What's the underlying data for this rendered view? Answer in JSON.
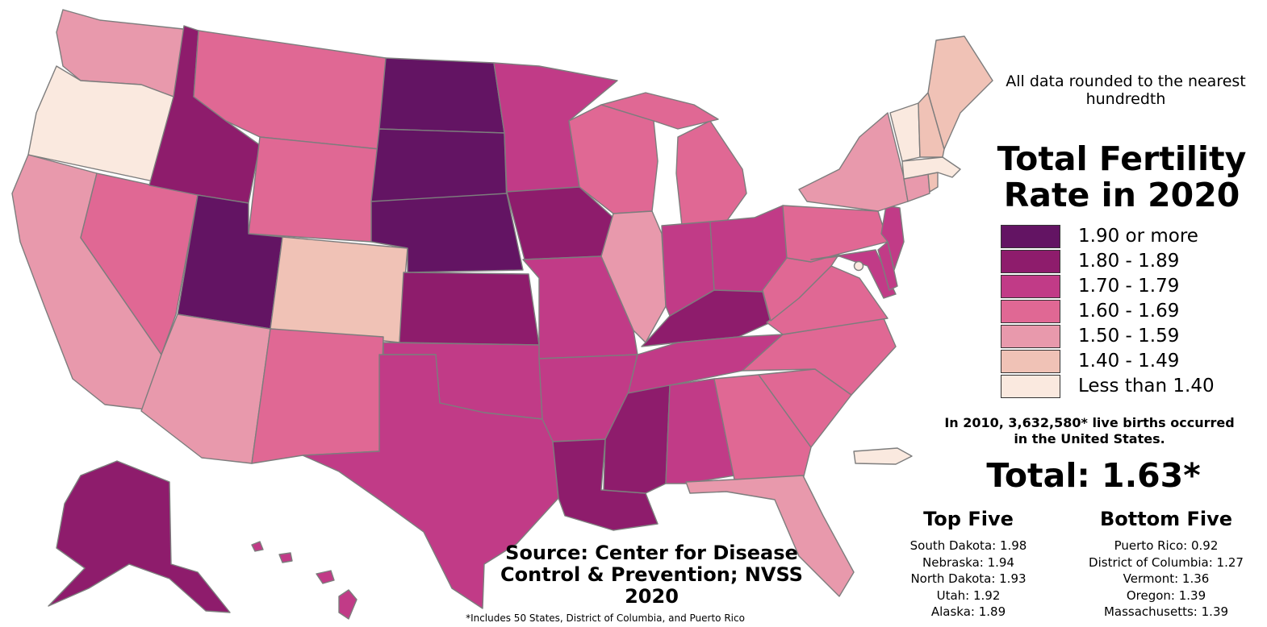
{
  "title": "Total Fertility Rate in 2020",
  "note": "All data rounded to the nearest hundredth",
  "legend": [
    {
      "label": "1.90 or more",
      "color": "#631463"
    },
    {
      "label": "1.80 - 1.89",
      "color": "#8e1c6c"
    },
    {
      "label": "1.70 - 1.79",
      "color": "#c13b87"
    },
    {
      "label": "1.60 - 1.69",
      "color": "#e06894"
    },
    {
      "label": "1.50 - 1.59",
      "color": "#e899ac"
    },
    {
      "label": "1.40 - 1.49",
      "color": "#f0c2b6"
    },
    {
      "label": "Less than 1.40",
      "color": "#fae9df"
    }
  ],
  "births_note": "In 2010, 3,632,580* live births occurred in the United States.",
  "total": "Total: 1.63*",
  "top_five": {
    "heading": "Top Five",
    "items": [
      "South Dakota: 1.98",
      "Nebraska: 1.94",
      "North Dakota: 1.93",
      "Utah: 1.92",
      "Alaska: 1.89"
    ]
  },
  "bottom_five": {
    "heading": "Bottom Five",
    "items": [
      "Puerto Rico: 0.92",
      "District of Columbia: 1.27",
      "Vermont: 1.36",
      "Oregon: 1.39",
      "Massachusetts: 1.39"
    ]
  },
  "source": "Source: Center for Disease Control & Prevention; NVSS 2020",
  "footnote": "*Includes 50 States, District of Columbia, and Puerto Rico",
  "chart_data": {
    "type": "choropleth",
    "title": "Total Fertility Rate in 2020",
    "states": [
      {
        "name": "Washington",
        "bin": "1.50 - 1.59"
      },
      {
        "name": "Oregon",
        "value": 1.39,
        "bin": "Less than 1.40"
      },
      {
        "name": "California",
        "bin": "1.50 - 1.59"
      },
      {
        "name": "Nevada",
        "bin": "1.60 - 1.69"
      },
      {
        "name": "Idaho",
        "bin": "1.80 - 1.89"
      },
      {
        "name": "Montana",
        "bin": "1.60 - 1.69"
      },
      {
        "name": "Wyoming",
        "bin": "1.60 - 1.69"
      },
      {
        "name": "Utah",
        "value": 1.92,
        "bin": "1.90 or more"
      },
      {
        "name": "Arizona",
        "bin": "1.50 - 1.59"
      },
      {
        "name": "Colorado",
        "bin": "1.40 - 1.49"
      },
      {
        "name": "New Mexico",
        "bin": "1.60 - 1.69"
      },
      {
        "name": "North Dakota",
        "value": 1.93,
        "bin": "1.90 or more"
      },
      {
        "name": "South Dakota",
        "value": 1.98,
        "bin": "1.90 or more"
      },
      {
        "name": "Nebraska",
        "value": 1.94,
        "bin": "1.90 or more"
      },
      {
        "name": "Kansas",
        "bin": "1.80 - 1.89"
      },
      {
        "name": "Oklahoma",
        "bin": "1.70 - 1.79"
      },
      {
        "name": "Texas",
        "bin": "1.70 - 1.79"
      },
      {
        "name": "Minnesota",
        "bin": "1.70 - 1.79"
      },
      {
        "name": "Iowa",
        "bin": "1.80 - 1.89"
      },
      {
        "name": "Missouri",
        "bin": "1.70 - 1.79"
      },
      {
        "name": "Arkansas",
        "bin": "1.70 - 1.79"
      },
      {
        "name": "Louisiana",
        "bin": "1.80 - 1.89"
      },
      {
        "name": "Wisconsin",
        "bin": "1.60 - 1.69"
      },
      {
        "name": "Illinois",
        "bin": "1.50 - 1.59"
      },
      {
        "name": "Michigan",
        "bin": "1.60 - 1.69"
      },
      {
        "name": "Indiana",
        "bin": "1.70 - 1.79"
      },
      {
        "name": "Ohio",
        "bin": "1.70 - 1.79"
      },
      {
        "name": "Kentucky",
        "bin": "1.80 - 1.89"
      },
      {
        "name": "Tennessee",
        "bin": "1.70 - 1.79"
      },
      {
        "name": "Mississippi",
        "bin": "1.80 - 1.89"
      },
      {
        "name": "Alabama",
        "bin": "1.70 - 1.79"
      },
      {
        "name": "Georgia",
        "bin": "1.60 - 1.69"
      },
      {
        "name": "Florida",
        "bin": "1.50 - 1.59"
      },
      {
        "name": "South Carolina",
        "bin": "1.60 - 1.69"
      },
      {
        "name": "North Carolina",
        "bin": "1.60 - 1.69"
      },
      {
        "name": "Virginia",
        "bin": "1.60 - 1.69"
      },
      {
        "name": "West Virginia",
        "bin": "1.60 - 1.69"
      },
      {
        "name": "Pennsylvania",
        "bin": "1.60 - 1.69"
      },
      {
        "name": "New York",
        "bin": "1.50 - 1.59"
      },
      {
        "name": "New Jersey",
        "bin": "1.70 - 1.79"
      },
      {
        "name": "Delaware",
        "bin": "1.70 - 1.79"
      },
      {
        "name": "Maryland",
        "bin": "1.70 - 1.79"
      },
      {
        "name": "District of Columbia",
        "value": 1.27,
        "bin": "Less than 1.40"
      },
      {
        "name": "Connecticut",
        "bin": "1.50 - 1.59"
      },
      {
        "name": "Rhode Island",
        "bin": "1.40 - 1.49"
      },
      {
        "name": "Massachusetts",
        "value": 1.39,
        "bin": "Less than 1.40"
      },
      {
        "name": "Vermont",
        "value": 1.36,
        "bin": "Less than 1.40"
      },
      {
        "name": "New Hampshire",
        "bin": "1.40 - 1.49"
      },
      {
        "name": "Maine",
        "bin": "1.40 - 1.49"
      },
      {
        "name": "Alaska",
        "value": 1.89,
        "bin": "1.80 - 1.89"
      },
      {
        "name": "Hawaii",
        "bin": "1.70 - 1.79"
      },
      {
        "name": "Puerto Rico",
        "value": 0.92,
        "bin": "Less than 1.40"
      }
    ],
    "total": 1.63
  }
}
